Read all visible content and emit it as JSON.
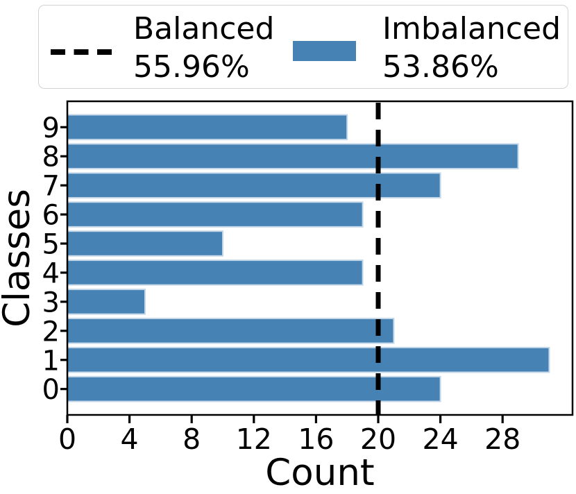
{
  "legend": {
    "balanced": {
      "line1": "Balanced",
      "line2": "55.96%"
    },
    "imbalanced": {
      "line1": "Imbalanced",
      "line2": "53.86%"
    }
  },
  "chart_data": {
    "type": "bar",
    "orientation": "horizontal",
    "title": "",
    "xlabel": "Count",
    "ylabel": "Classes",
    "categories": [
      "0",
      "1",
      "2",
      "3",
      "4",
      "5",
      "6",
      "7",
      "8",
      "9"
    ],
    "values": [
      24,
      31,
      21,
      5,
      19,
      10,
      19,
      24,
      29,
      18
    ],
    "x_ticks": [
      0,
      4,
      8,
      12,
      16,
      20,
      24,
      28
    ],
    "xlim": [
      0,
      32.5
    ],
    "ylim": [
      -0.89,
      9.89
    ],
    "grid": false,
    "bar_color": "#4682b4",
    "bar_edge_color": "#c3d7e8",
    "reference_line": {
      "value": 20,
      "color": "#000000",
      "style": "dashed",
      "label": "Balanced"
    },
    "legend_entries": [
      {
        "marker": "dashed-line",
        "color": "#000000",
        "label": "Balanced 55.96%"
      },
      {
        "marker": "bar",
        "color": "#4682b4",
        "label": "Imbalanced 53.86%"
      }
    ],
    "legend_position": "top"
  },
  "colors": {
    "bar": "#4682b4",
    "reference_line": "#000000",
    "legend_border": "#d2d2d2",
    "text": "#000000",
    "background": "#ffffff"
  }
}
